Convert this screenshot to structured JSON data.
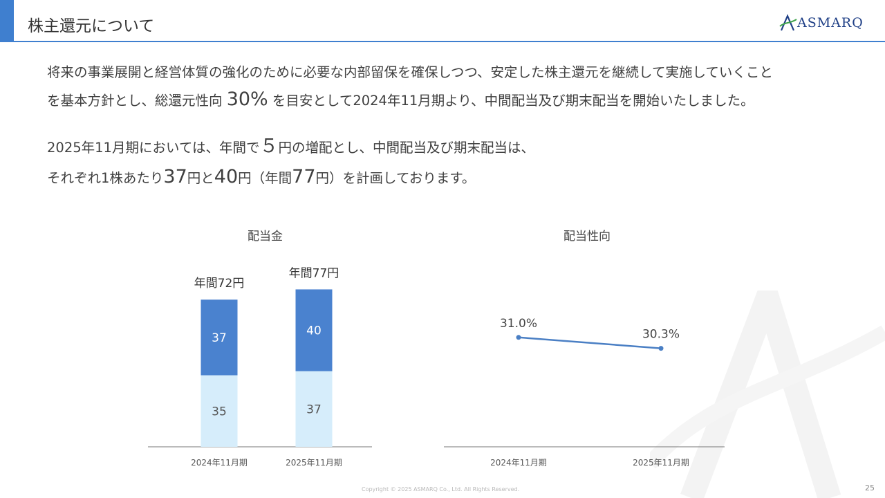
{
  "header": {
    "title": "株主還元について",
    "logo_text": "ASMARQ",
    "accent_color": "#3f7fcf",
    "logo_color": "#1f3f86"
  },
  "body": {
    "line1": "将来の事業展開と経営体質の強化のために必要な内部留保を確保しつつ、安定した株主還元を継続して実施していくこと",
    "line2_pre": "を基本方針とし、総還元性向 ",
    "line2_num": "30%",
    "line2_post": " を目安として2024年11月期より、中間配当及び期末配当を開始いたしました。",
    "line3_pre": "2025年11月期においては、年間で",
    "line3_num": "５",
    "line3_post": "円の増配とし、中間配当及び期末配当は、",
    "line4_a": "それぞれ1株あたり",
    "line4_num1": "37",
    "line4_b": "円と",
    "line4_num2": "40",
    "line4_c": "円（年間",
    "line4_num3": "77",
    "line4_d": "円）を計画しております。"
  },
  "chart_data": [
    {
      "type": "bar",
      "stacked": true,
      "title": "配当金",
      "categories": [
        "2024年11月期",
        "2025年11月期"
      ],
      "series": [
        {
          "values": [
            35,
            37
          ],
          "color": "#d6edfb",
          "label_color": "#555555"
        },
        {
          "values": [
            37,
            40
          ],
          "color": "#4a82cf",
          "label_color": "#ffffff"
        }
      ],
      "totals_labels": [
        "年間72円",
        "年間77円"
      ],
      "ylim": [
        0,
        90
      ]
    },
    {
      "type": "line",
      "title": "配当性向",
      "categories": [
        "2024年11月期",
        "2025年11月期"
      ],
      "series": [
        {
          "values": [
            31.0,
            30.3
          ],
          "labels": [
            "31.0%",
            "30.3%"
          ],
          "color": "#4a7fc4"
        }
      ],
      "ylim": [
        24,
        34
      ]
    }
  ],
  "footer": {
    "copyright": "Copyright © 2025 ASMARQ Co., Ltd. All Rights Reserved.",
    "page_number": "25"
  }
}
